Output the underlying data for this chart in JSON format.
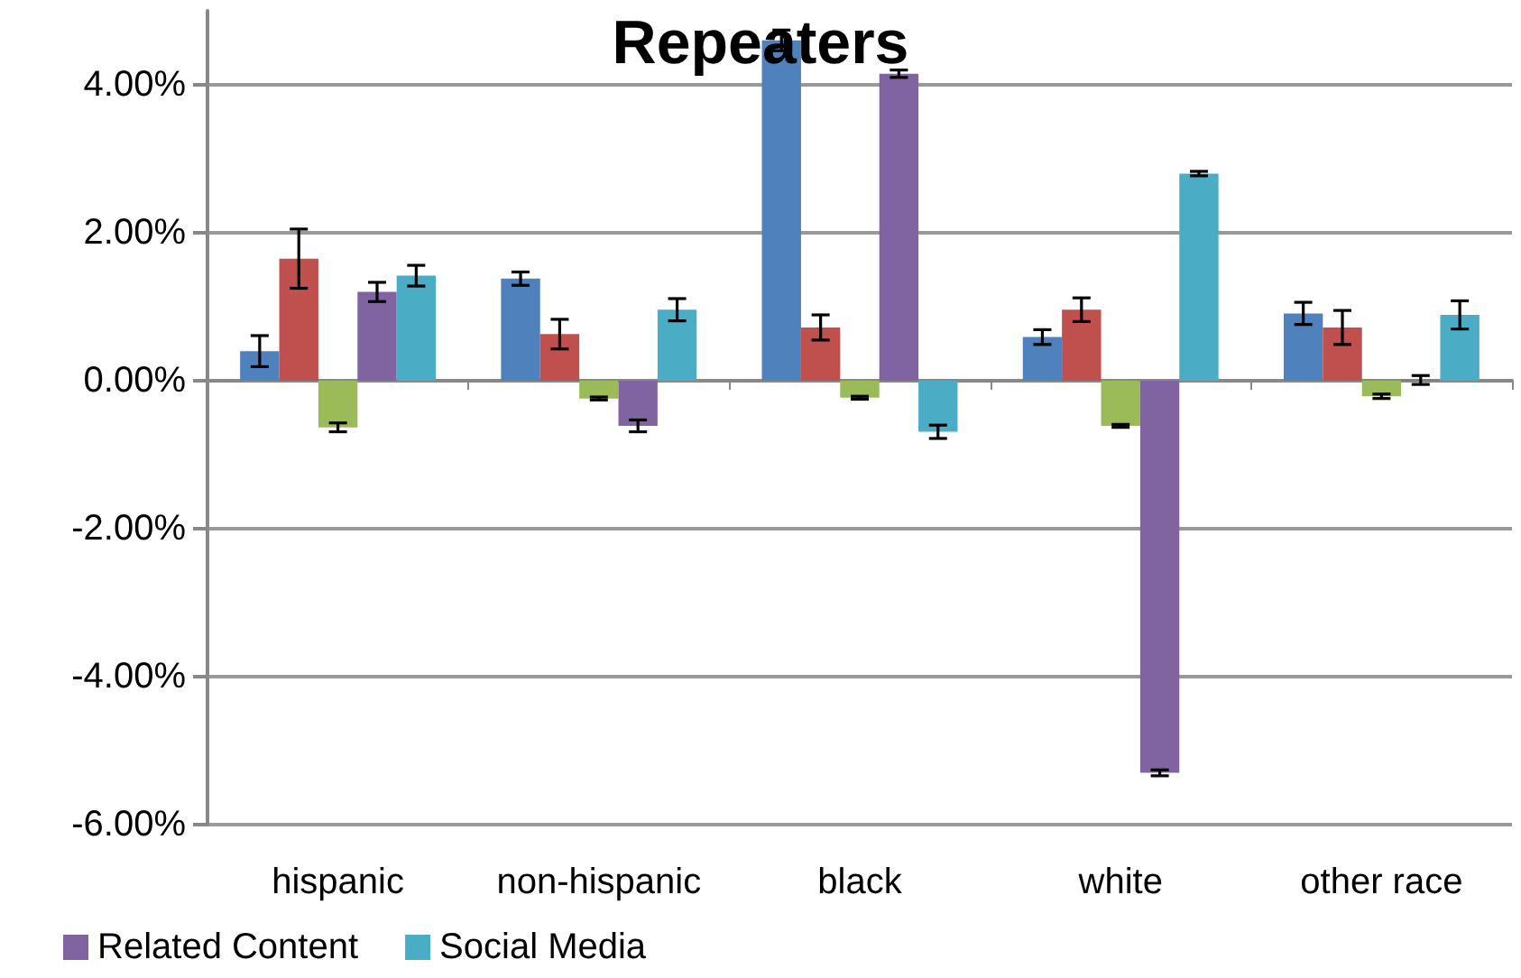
{
  "chart_data": {
    "type": "bar",
    "title": "Repeaters",
    "categories": [
      "hispanic",
      "non-hispanic",
      "black",
      "white",
      "other race"
    ],
    "series": [
      {
        "color": "#4f81bd",
        "values": [
          0.4,
          1.38,
          4.6,
          0.59,
          0.91
        ],
        "errors": [
          0.21,
          0.09,
          0.14,
          0.1,
          0.15
        ]
      },
      {
        "color": "#c0504d",
        "values": [
          1.65,
          0.63,
          0.72,
          0.96,
          0.72
        ],
        "errors": [
          0.4,
          0.2,
          0.17,
          0.16,
          0.23
        ]
      },
      {
        "color": "#9bbb59",
        "values": [
          -0.63,
          -0.24,
          -0.23,
          -0.61,
          -0.21
        ],
        "errors": [
          0.06,
          0.02,
          0.02,
          0.02,
          0.03
        ]
      },
      {
        "name": "Related Content",
        "color": "#8064a2",
        "values": [
          1.2,
          -0.61,
          4.15,
          -5.3,
          0.01
        ],
        "errors": [
          0.13,
          0.08,
          0.05,
          0.04,
          0.06
        ]
      },
      {
        "name": "Social Media",
        "color": "#4bacc6",
        "values": [
          1.42,
          0.96,
          -0.69,
          2.8,
          0.89
        ],
        "errors": [
          0.14,
          0.15,
          0.09,
          0.03,
          0.19
        ]
      }
    ],
    "ylim": [
      -6,
      5
    ],
    "yticks": [
      {
        "value": -6,
        "label": "-6.00%"
      },
      {
        "value": -4,
        "label": "-4.00%"
      },
      {
        "value": -2,
        "label": "-2.00%"
      },
      {
        "value": 0,
        "label": "0.00%"
      },
      {
        "value": 2,
        "label": "2.00%"
      },
      {
        "value": 4,
        "label": "4.00%"
      }
    ],
    "grid": "y",
    "legend": "bottom left"
  }
}
